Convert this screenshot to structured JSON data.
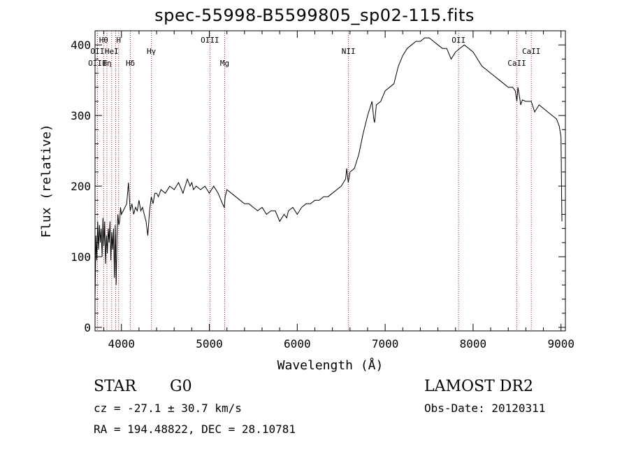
{
  "chart_data": {
    "type": "line",
    "title": "spec-55998-B5599805_sp02-115.fits",
    "xlabel": "Wavelength (Å)",
    "ylabel": "Flux (relative)",
    "xlim": [
      3700,
      9050
    ],
    "ylim": [
      -5,
      420
    ],
    "xticks": [
      4000,
      5000,
      6000,
      7000,
      8000,
      9000
    ],
    "yticks": [
      0,
      100,
      200,
      300,
      400
    ],
    "grid": false,
    "legend": "none",
    "line_color": "#000000",
    "marker_color": "#b22222",
    "series": [
      {
        "x": [
          3700,
          3710,
          3720,
          3730,
          3740,
          3750,
          3760,
          3770,
          3780,
          3790,
          3800,
          3810,
          3820,
          3830,
          3840,
          3850,
          3860,
          3870,
          3880,
          3890,
          3900,
          3910,
          3920,
          3930,
          3940,
          3950,
          3960,
          3970,
          3980,
          3990,
          4000,
          4020,
          4040,
          4060,
          4080,
          4100,
          4110,
          4120,
          4140,
          4160,
          4180,
          4200,
          4220,
          4240,
          4260,
          4280,
          4300,
          4320,
          4340,
          4360,
          4380,
          4400,
          4420,
          4450,
          4500,
          4550,
          4600,
          4650,
          4700,
          4750,
          4780,
          4800,
          4820,
          4850,
          4900,
          4950,
          5000,
          5050,
          5100,
          5150,
          5170,
          5180,
          5200,
          5250,
          5300,
          5350,
          5400,
          5450,
          5500,
          5550,
          5600,
          5650,
          5700,
          5750,
          5800,
          5850,
          5880,
          5900,
          5950,
          6000,
          6050,
          6100,
          6150,
          6200,
          6250,
          6300,
          6350,
          6400,
          6450,
          6500,
          6550,
          6563,
          6580,
          6600,
          6650,
          6700,
          6750,
          6800,
          6850,
          6870,
          6880,
          6900,
          6950,
          7000,
          7050,
          7100,
          7150,
          7200,
          7250,
          7300,
          7350,
          7400,
          7450,
          7500,
          7550,
          7600,
          7650,
          7700,
          7750,
          7800,
          7850,
          7900,
          7950,
          8000,
          8050,
          8100,
          8150,
          8200,
          8250,
          8300,
          8350,
          8400,
          8450,
          8480,
          8498,
          8510,
          8530,
          8542,
          8560,
          8600,
          8650,
          8662,
          8700,
          8750,
          8800,
          8850,
          8900,
          8950,
          8980,
          9000,
          9010
        ],
        "y": [
          40,
          130,
          95,
          150,
          110,
          145,
          120,
          140,
          100,
          155,
          115,
          150,
          90,
          130,
          105,
          140,
          120,
          150,
          95,
          135,
          110,
          140,
          70,
          145,
          60,
          130,
          160,
          145,
          150,
          170,
          160,
          165,
          170,
          175,
          205,
          165,
          170,
          175,
          160,
          170,
          165,
          180,
          165,
          170,
          160,
          150,
          130,
          165,
          185,
          175,
          190,
          190,
          185,
          195,
          190,
          200,
          195,
          205,
          190,
          210,
          200,
          205,
          195,
          200,
          195,
          200,
          190,
          200,
          190,
          175,
          170,
          185,
          195,
          190,
          185,
          180,
          175,
          175,
          170,
          165,
          170,
          160,
          165,
          165,
          150,
          160,
          155,
          165,
          170,
          160,
          170,
          175,
          175,
          180,
          180,
          185,
          185,
          190,
          195,
          200,
          210,
          225,
          205,
          220,
          225,
          245,
          275,
          300,
          320,
          295,
          290,
          315,
          320,
          335,
          340,
          345,
          370,
          385,
          395,
          400,
          405,
          405,
          410,
          410,
          405,
          400,
          395,
          395,
          380,
          390,
          395,
          400,
          395,
          390,
          380,
          370,
          365,
          360,
          355,
          350,
          345,
          340,
          340,
          335,
          320,
          340,
          325,
          315,
          322,
          320,
          320,
          320,
          305,
          315,
          310,
          305,
          300,
          295,
          285,
          270,
          150
        ]
      }
    ],
    "lines": [
      {
        "wavelength": 3727,
        "label": "OII",
        "row": 2
      },
      {
        "wavelength": 3727,
        "label": "OIII",
        "row": 3
      },
      {
        "wavelength": 3798,
        "label": "Hθ",
        "row": 1
      },
      {
        "wavelength": 3835,
        "label": "Hη",
        "row": 3
      },
      {
        "wavelength": 3889,
        "label": "HeI",
        "row": 2
      },
      {
        "wavelength": 3934,
        "label": "",
        "row": 0
      },
      {
        "wavelength": 3968,
        "label": "H",
        "row": 1
      },
      {
        "wavelength": 4102,
        "label": "Hδ",
        "row": 3
      },
      {
        "wavelength": 4341,
        "label": "Hγ",
        "row": 2
      },
      {
        "wavelength": 5007,
        "label": "OIII",
        "row": 1
      },
      {
        "wavelength": 5175,
        "label": "Mg",
        "row": 3
      },
      {
        "wavelength": 6583,
        "label": "NII",
        "row": 2
      },
      {
        "wavelength": 7835,
        "label": "OII",
        "row": 1
      },
      {
        "wavelength": 8498,
        "label": "CaII",
        "row": 3
      },
      {
        "wavelength": 8662,
        "label": "CaII",
        "row": 2
      }
    ]
  },
  "info": {
    "object_class": "STAR",
    "subclass": "G0",
    "survey": "LAMOST DR2",
    "redshift": "cz = -27.1 ± 30.7 km/s",
    "obs_date": "Obs-Date: 20120311",
    "coords": "RA = 194.48822, DEC =  28.10781"
  }
}
